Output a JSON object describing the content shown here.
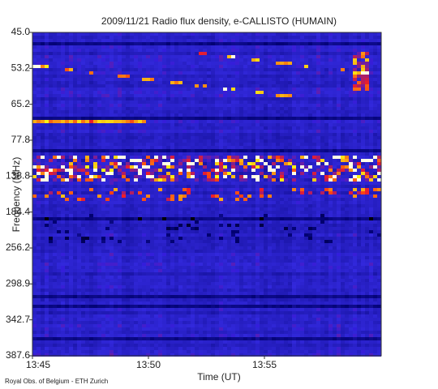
{
  "chart_data": {
    "type": "spectrogram",
    "title": "2009/11/21  Radio flux density, e-CALLISTO (HUMAIN)",
    "xlabel": "Time (UT)",
    "ylabel": "Frequency (MHz)",
    "xticks": [
      "13:45",
      "13:50",
      "13:55"
    ],
    "yticks": [
      {
        "value": 45.0,
        "label": "45.0"
      },
      {
        "value": 53.2,
        "label": "53.2"
      },
      {
        "value": 65.2,
        "label": "65.2"
      },
      {
        "value": 77.8,
        "label": "77.8"
      },
      {
        "value": 138.8,
        "label": "138.8"
      },
      {
        "value": 184.4,
        "label": "184.4"
      },
      {
        "value": 256.2,
        "label": "256.2"
      },
      {
        "value": 298.9,
        "label": "298.9"
      },
      {
        "value": 342.7,
        "label": "342.7"
      },
      {
        "value": 387.6,
        "label": "387.6"
      }
    ],
    "credit": "Royal Obs. of Belgium - ETH Zurich"
  }
}
